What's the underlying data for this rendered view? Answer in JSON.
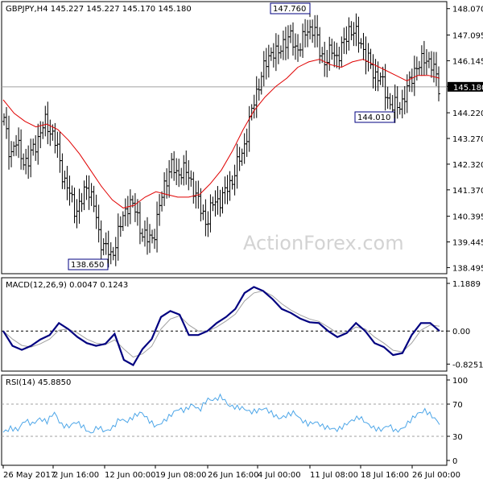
{
  "chart_data": [
    {
      "type": "ohlc",
      "name": "price-panel",
      "header": "GBPJPY,H4  145.227 145.227 145.170 145.180",
      "symbol": "GBPJPY",
      "timeframe": "H4",
      "ohlc_header": {
        "open": 145.227,
        "high": 145.227,
        "low": 145.17,
        "close": 145.18
      },
      "current_price": 145.18,
      "current_price_label": "145.180",
      "ylim": [
        138.27,
        148.33
      ],
      "y_ticks": [
        138.495,
        139.445,
        140.395,
        141.37,
        142.32,
        143.27,
        144.22,
        145.195,
        146.145,
        147.095,
        148.07
      ],
      "y_tick_labels": [
        "138.495",
        "139.445",
        "140.395",
        "141.370",
        "142.320",
        "143.270",
        "144.220",
        "145.195",
        "146.145",
        "147.095",
        "148.070"
      ],
      "price_path_approx": [
        143.9,
        142.7,
        143.1,
        142.6,
        142.3,
        143.0,
        143.4,
        143.9,
        143.5,
        142.8,
        141.8,
        141.2,
        140.6,
        140.9,
        141.6,
        140.9,
        139.6,
        139.3,
        138.8,
        139.7,
        140.3,
        141.0,
        140.6,
        139.9,
        139.5,
        139.6,
        140.6,
        141.6,
        142.3,
        141.9,
        142.2,
        141.8,
        141.4,
        140.6,
        140.2,
        140.8,
        141.0,
        141.2,
        141.6,
        142.2,
        142.7,
        143.7,
        144.6,
        145.5,
        146.0,
        146.6,
        146.3,
        146.9,
        147.0,
        146.6,
        146.8,
        147.3,
        147.4,
        146.5,
        146.1,
        146.5,
        146.3,
        146.7,
        147.4,
        147.1,
        146.8,
        146.2,
        145.7,
        145.6,
        145.0,
        144.5,
        144.4,
        144.7,
        145.2,
        145.9,
        146.0,
        146.3,
        145.9,
        145.2
      ],
      "ma_path_approx": [
        144.7,
        144.2,
        143.9,
        143.7,
        143.8,
        143.6,
        143.2,
        142.7,
        142.1,
        141.5,
        141.0,
        140.7,
        140.8,
        141.1,
        141.3,
        141.2,
        141.1,
        141.1,
        141.2,
        141.6,
        142.1,
        142.8,
        143.6,
        144.3,
        144.8,
        145.2,
        145.5,
        145.9,
        146.1,
        146.2,
        146.0,
        145.9,
        146.1,
        146.2,
        146.0,
        145.8,
        145.6,
        145.4,
        145.6,
        145.6,
        145.5
      ],
      "annotations": [
        {
          "text": "147.760",
          "value": 147.76,
          "kind": "high"
        },
        {
          "text": "138.650",
          "value": 138.65,
          "kind": "low"
        },
        {
          "text": "144.010",
          "value": 144.01,
          "kind": "low"
        }
      ],
      "watermark": "ActionForex.com"
    },
    {
      "type": "line",
      "name": "macd-panel",
      "header": "MACD(12,26,9) 0.0047 0.1243",
      "ylim": [
        -1.0,
        1.33
      ],
      "y_ticks": [
        1.1889,
        0.0,
        -0.8251
      ],
      "y_tick_labels": [
        "1.1889",
        "0.00",
        "-0.8251"
      ],
      "zero_line": 0.0,
      "series": [
        {
          "name": "MACD",
          "color": "#000080",
          "values": [
            0.0,
            -0.37,
            -0.47,
            -0.37,
            -0.21,
            -0.1,
            0.2,
            0.05,
            -0.15,
            -0.3,
            -0.37,
            -0.32,
            -0.07,
            -0.72,
            -0.85,
            -0.45,
            -0.2,
            0.35,
            0.5,
            0.41,
            -0.1,
            -0.1,
            0.0,
            0.2,
            0.35,
            0.55,
            0.95,
            1.1,
            1.0,
            0.8,
            0.55,
            0.45,
            0.31,
            0.22,
            0.2,
            0.0,
            -0.15,
            -0.05,
            0.2,
            0.0,
            -0.3,
            -0.4,
            -0.6,
            -0.55,
            -0.1,
            0.2,
            0.2,
            0.0
          ]
        },
        {
          "name": "Signal",
          "color": "#a0a0a0",
          "values": [
            0.0,
            -0.2,
            -0.36,
            -0.4,
            -0.32,
            -0.2,
            0.02,
            0.05,
            -0.05,
            -0.2,
            -0.3,
            -0.34,
            -0.22,
            -0.45,
            -0.65,
            -0.57,
            -0.38,
            0.05,
            0.3,
            0.38,
            0.15,
            0.0,
            0.0,
            0.1,
            0.25,
            0.42,
            0.75,
            0.95,
            1.0,
            0.88,
            0.68,
            0.52,
            0.4,
            0.3,
            0.24,
            0.1,
            -0.05,
            -0.05,
            0.1,
            0.05,
            -0.15,
            -0.3,
            -0.48,
            -0.52,
            -0.3,
            0.02,
            0.15,
            0.12
          ]
        }
      ]
    },
    {
      "type": "line",
      "name": "rsi-panel",
      "header": "RSI(14) 45.8850",
      "ylim": [
        0,
        100
      ],
      "y_ticks": [
        100,
        70,
        30,
        0
      ],
      "y_tick_labels": [
        "100",
        "70",
        "30",
        "0"
      ],
      "levels": [
        70,
        30
      ],
      "series": [
        {
          "name": "RSI",
          "color": "#4da6e8",
          "values": [
            35,
            40,
            38,
            50,
            45,
            52,
            48,
            60,
            44,
            42,
            48,
            42,
            33,
            42,
            36,
            40,
            52,
            48,
            55,
            60,
            50,
            42,
            48,
            56,
            64,
            62,
            70,
            62,
            76,
            75,
            80,
            68,
            66,
            65,
            60,
            62,
            65,
            58,
            52,
            56,
            60,
            50,
            45,
            48,
            42,
            40,
            38,
            44,
            50,
            54,
            46,
            40,
            38,
            44,
            36,
            40,
            50,
            58,
            62,
            55,
            46
          ]
        }
      ]
    }
  ],
  "x_axis": {
    "tick_labels": [
      "26 May 2017",
      "2 Jun 16:00",
      "12 Jun 00:00",
      "19 Jun 08:00",
      "26 Jun 16:00",
      "4 Jul 00:00",
      "11 Jul 08:00",
      "18 Jul 16:00",
      "26 Jul 00:00"
    ]
  },
  "colors": {
    "price_bars": "#000000",
    "moving_average": "#e00000",
    "macd": "#000080",
    "signal": "#a0a0a0",
    "rsi": "#4da6e8",
    "label_box_border": "#000080",
    "current_price_line": "#a0a0a0",
    "watermark": "#d3d3d3"
  }
}
